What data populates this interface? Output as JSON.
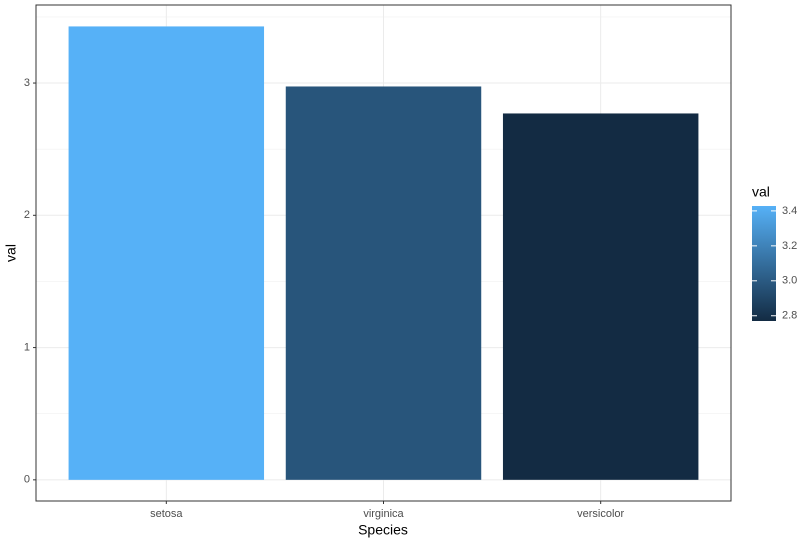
{
  "chart_data": {
    "type": "bar",
    "x_label": "Species",
    "y_label": "val",
    "categories": [
      "setosa",
      "virginica",
      "versicolor"
    ],
    "values": [
      3.428,
      2.974,
      2.77
    ],
    "ylim": [
      -0.16,
      3.59
    ],
    "yticks": [
      0,
      1,
      2,
      3
    ],
    "grid": true,
    "legend": {
      "title": "val",
      "low_color": "#132B43",
      "high_color": "#56B1F7",
      "ticks": [
        {
          "value": 3.4,
          "label": "3.4"
        },
        {
          "value": 3.2,
          "label": "3.2"
        },
        {
          "value": 3,
          "label": "3.0"
        },
        {
          "value": 2.8,
          "label": "2.8"
        }
      ]
    }
  }
}
